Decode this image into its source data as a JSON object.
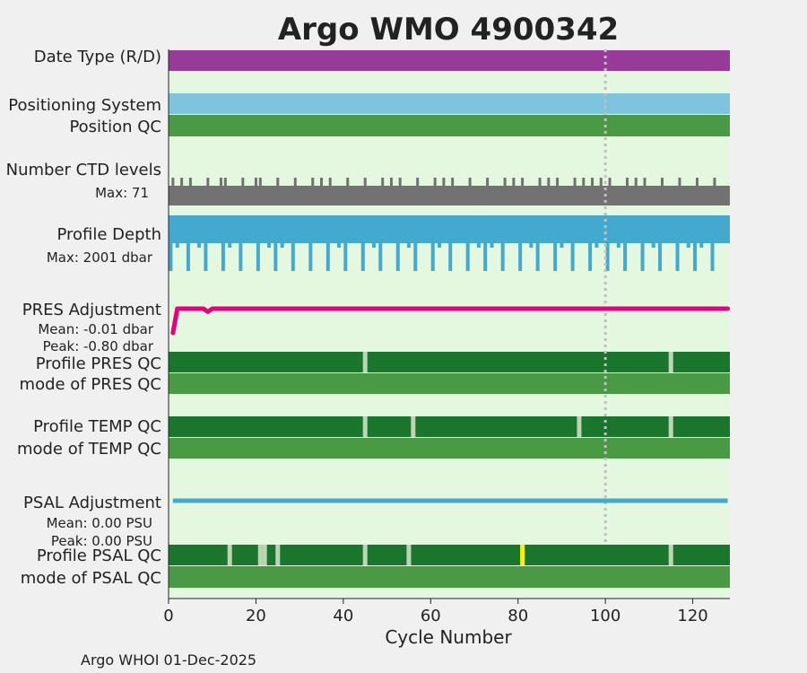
{
  "chart_data": {
    "type": "timeline",
    "title": "Argo WMO 4900342",
    "xlabel": "Cycle Number",
    "xlim": [
      0,
      128.5
    ],
    "xticks": [
      0,
      20,
      40,
      60,
      80,
      100,
      120
    ],
    "reference_line_x": 100,
    "footer": "Argo WHOI 01-Dec-2025",
    "colors": {
      "title": "#1a8fc0",
      "plot_bg": "#e4f8e0",
      "purple": "#983a97",
      "lightblue": "#7ec4de",
      "qc_mode_green": "#4a9a45",
      "qc_profile_green": "#1a762c",
      "qc_gap": "#bcd6b4",
      "qc_yellow": "#f5f500",
      "ctd_gray": "#727272",
      "depth_blue": "#44a9cf",
      "pres_pink": "#e6007e",
      "psal_blue": "#44a9cf",
      "ref_line": "#c0c0c0"
    },
    "rows": {
      "date_type": {
        "label": "Date Type (R/D)",
        "start": 0,
        "end": 128.5
      },
      "positioning": {
        "label": "Positioning System",
        "start": 0,
        "end": 128.5
      },
      "position_qc": {
        "label": "Position QC",
        "start": 0,
        "end": 128.5
      },
      "ctd": {
        "label": "Number CTD levels",
        "max_label": "Max: 71",
        "spike_cycles": [
          1,
          3,
          5,
          9,
          12,
          13,
          17,
          20,
          21,
          25,
          29,
          33,
          35,
          37,
          41,
          45,
          49,
          51,
          53,
          57,
          61,
          63,
          65,
          69,
          73,
          77,
          79,
          81,
          85,
          87,
          89,
          93,
          95,
          97,
          99,
          101,
          105,
          107,
          109,
          113,
          117,
          121,
          125
        ]
      },
      "depth": {
        "label": "Profile Depth",
        "max_label": "Max: 2001 dbar",
        "deep_cycles": [
          0.5,
          4.5,
          8.5,
          12.5,
          16.5,
          20.5,
          24.5,
          28.5,
          32.5,
          36.5,
          40.5,
          44.5,
          48.5,
          52.5,
          56.5,
          60.5,
          64.5,
          68.5,
          72.5,
          76.5,
          80.5,
          84.5,
          88.5,
          92.5,
          96.5,
          100.5,
          104.5,
          108.5,
          112.5,
          116.5,
          120.5,
          124.5
        ],
        "notch_cycles": [
          2,
          7,
          14,
          23,
          26,
          39,
          47,
          55,
          62,
          71,
          74,
          83,
          90,
          98,
          103,
          111,
          119,
          122
        ]
      },
      "pres_adj": {
        "label": "PRES Adjustment",
        "mean_label": "Mean: -0.01 dbar",
        "peak_label": "Peak: -0.80 dbar",
        "x": [
          1,
          2,
          8,
          9,
          10,
          128
        ],
        "y": [
          -0.8,
          0,
          0,
          -0.1,
          0,
          0
        ],
        "ylim": [
          -0.85,
          0.15
        ]
      },
      "profile_pres_qc": {
        "label": "Profile PRES QC",
        "gaps": [
          45,
          115
        ],
        "yellow": []
      },
      "mode_pres_qc": {
        "label": "mode of PRES QC"
      },
      "profile_temp_qc": {
        "label": "Profile TEMP QC",
        "gaps": [
          45,
          56,
          94,
          115
        ],
        "yellow": []
      },
      "mode_temp_qc": {
        "label": "mode of TEMP QC"
      },
      "psal_adj": {
        "label": "PSAL Adjustment",
        "mean_label": "Mean: 0.00 PSU",
        "peak_label": "Peak: 0.00 PSU",
        "x": [
          1,
          128
        ],
        "y": [
          0,
          0
        ]
      },
      "profile_psal_qc": {
        "label": "Profile PSAL QC",
        "gaps": [
          14,
          21,
          22,
          25,
          45,
          55,
          115
        ],
        "yellow": [
          81
        ]
      },
      "mode_psal_qc": {
        "label": "mode of PSAL QC"
      }
    }
  }
}
